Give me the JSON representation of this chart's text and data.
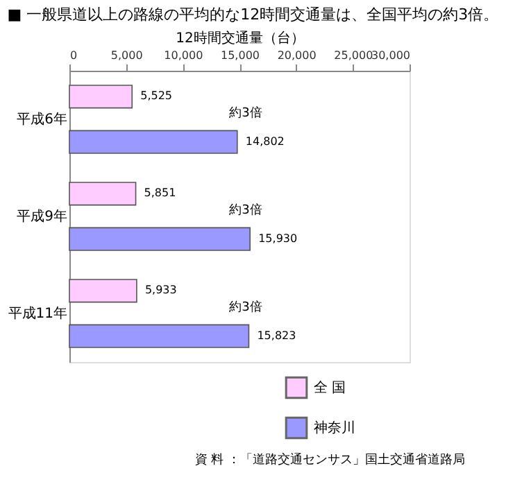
{
  "chart_data": {
    "type": "bar",
    "orientation": "horizontal",
    "title": "■ 一般県道以上の路線の平均的な12時間交通量は、全国平均の約3倍。",
    "xlabel": "12時間交通量（台）",
    "categories": [
      "平成6年",
      "平成9年",
      "平成11年"
    ],
    "series": [
      {
        "name": "全 国",
        "color": "#ffccff",
        "values": [
          5525,
          5851,
          5933
        ],
        "value_labels": [
          "5,525",
          "5,851",
          "5,933"
        ]
      },
      {
        "name": "神奈川",
        "color": "#9999ff",
        "values": [
          14802,
          15930,
          15823
        ],
        "value_labels": [
          "14,802",
          "15,930",
          "15,823"
        ]
      }
    ],
    "xlim": [
      0,
      30000
    ],
    "xticks": [
      0,
      {
        "value": 5000,
        "label": "5,000"
      },
      {
        "value": 10000,
        "label": "10,000"
      },
      {
        "value": 15000,
        "label": "15,000"
      },
      {
        "value": 20000,
        "label": "20,000"
      },
      {
        "value": 25000,
        "label": "25,000"
      },
      {
        "value": 30000,
        "label": "30,000"
      }
    ],
    "legend": "bottom right",
    "annotations": [
      "約3倍",
      "約3倍",
      "約3倍",
      "資 料 ：「道路交通センサス」国土交通省道路局"
    ]
  }
}
